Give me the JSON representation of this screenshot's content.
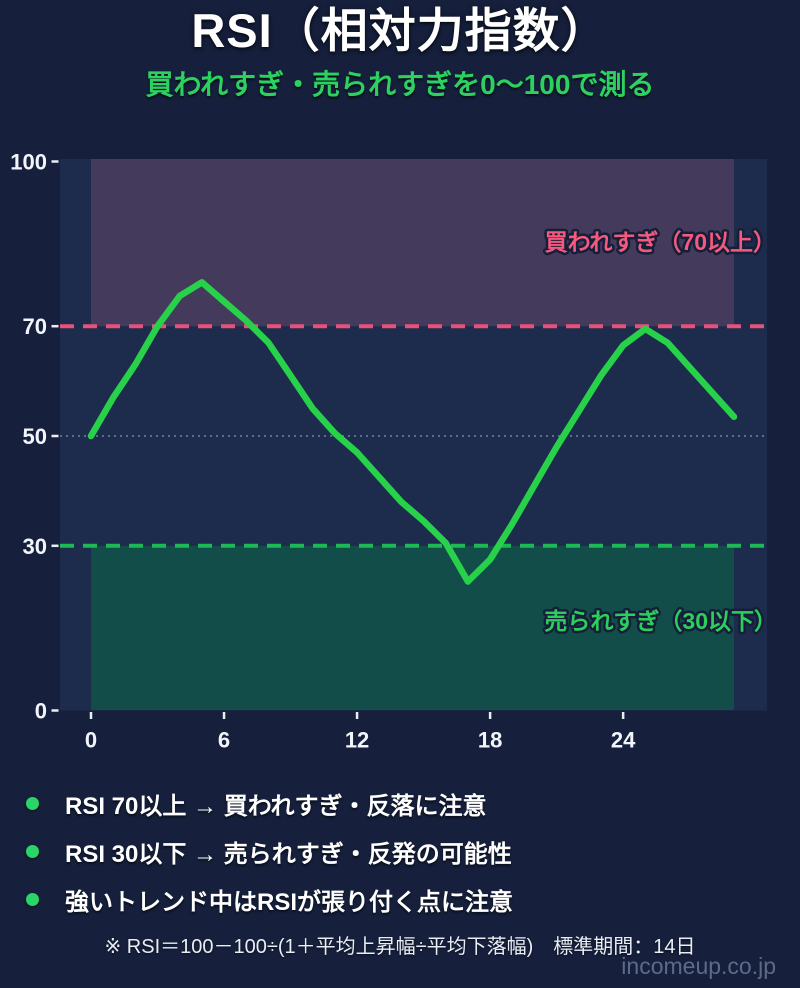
{
  "header": {
    "title": "RSI（相対力指数）",
    "subtitle": "買われすぎ・売られすぎを0〜100で測る"
  },
  "chart_data": {
    "type": "line",
    "series_name": "RSI",
    "x": [
      0,
      1,
      2,
      3,
      4,
      5,
      6,
      7,
      8,
      9,
      10,
      11,
      12,
      13,
      14,
      15,
      16,
      17,
      18,
      19,
      20,
      21,
      22,
      23,
      24,
      25,
      26,
      27,
      28,
      29
    ],
    "values": [
      50,
      57,
      63,
      70,
      75.5,
      78,
      74.5,
      71,
      67,
      61,
      55,
      50.5,
      47,
      42.5,
      38,
      34.5,
      30.5,
      23.5,
      27.5,
      34,
      41,
      48,
      54.5,
      61,
      66.5,
      69.5,
      67,
      62.5,
      58,
      53.5
    ],
    "ylim": [
      0,
      100
    ],
    "yticks": [
      0,
      30,
      50,
      70,
      100
    ],
    "xticks": [
      0,
      6,
      12,
      18,
      24
    ],
    "midline": 50,
    "grid": "off",
    "legend": "none",
    "thresholds": {
      "overbought": 70,
      "oversold": 30
    },
    "labels": {
      "overbought": "買われすぎ（70以上）",
      "oversold": "売られすぎ（30以下）"
    },
    "colors": {
      "line": "#28d14a",
      "plot_bg": "#1d2b4c",
      "overbought_fill": "#443a5c",
      "oversold_fill": "#134d49",
      "overbought_line": "#e8527a",
      "oversold_line": "#1db954",
      "overbought_text": "#f4597e",
      "oversold_text": "#2bd05c",
      "midline": "#9aa6c4",
      "tick": "#e9edf5"
    }
  },
  "notes": [
    "RSI 70以上 → 買われすぎ・反落に注意",
    "RSI 30以下 → 売られすぎ・反発の可能性",
    "強いトレンド中はRSIが張り付く点に注意"
  ],
  "footnote": "※ RSI＝100－100÷(1＋平均上昇幅÷平均下落幅)　標準期間：14日",
  "watermark": "incomeup.co.jp"
}
